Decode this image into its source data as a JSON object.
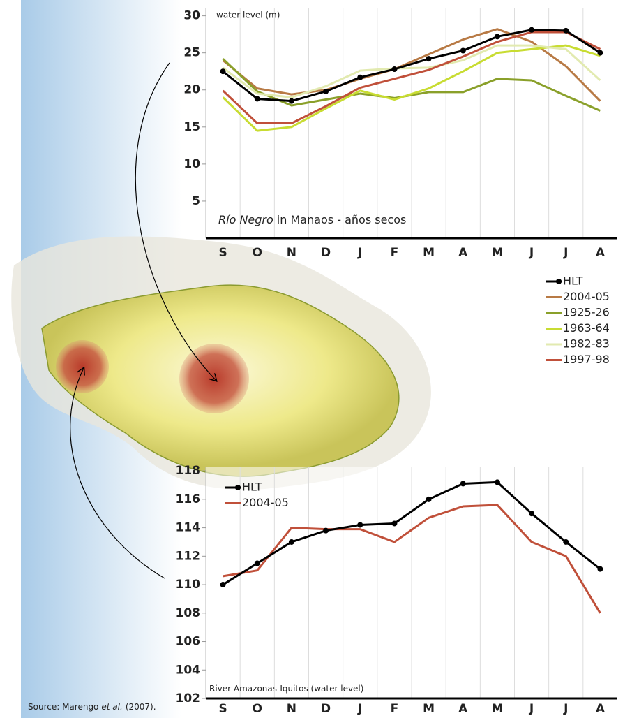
{
  "chart_data": [
    {
      "type": "line",
      "title": [
        "Río Negro",
        "in Manaos - años secos"
      ],
      "y_label": "water level (m)",
      "categories": [
        "S",
        "O",
        "N",
        "D",
        "J",
        "F",
        "M",
        "A",
        "M",
        "J",
        "J",
        "A"
      ],
      "series": [
        {
          "name": "HLT",
          "color": "#000000",
          "markers": true,
          "values": [
            22.5,
            18.8,
            18.5,
            19.8,
            21.7,
            22.8,
            24.2,
            25.3,
            27.2,
            28.1,
            28.0,
            25.0
          ]
        },
        {
          "name": "2004-05",
          "color": "#b87a45",
          "values": [
            24.0,
            20.2,
            19.4,
            20.0,
            21.5,
            22.8,
            24.8,
            26.8,
            28.2,
            26.5,
            23.2,
            18.5
          ]
        },
        {
          "name": "1925-26",
          "color": "#8aa02a",
          "values": [
            24.2,
            19.8,
            17.9,
            18.7,
            19.5,
            18.9,
            19.7,
            19.7,
            21.5,
            21.3,
            19.2,
            17.2
          ]
        },
        {
          "name": "1963-64",
          "color": "#c8dc32",
          "values": [
            19.0,
            14.5,
            15.0,
            17.5,
            19.9,
            18.7,
            20.2,
            22.5,
            25.0,
            25.5,
            26.0,
            24.6
          ]
        },
        {
          "name": "1982-83",
          "color": "#e2eab0",
          "values": [
            23.0,
            19.5,
            19.0,
            20.5,
            22.6,
            22.9,
            23.0,
            24.0,
            26.0,
            26.0,
            25.5,
            21.3
          ]
        },
        {
          "name": "1997-98",
          "color": "#c0503a",
          "values": [
            19.9,
            15.5,
            15.5,
            17.8,
            20.3,
            21.5,
            22.7,
            24.5,
            26.5,
            27.8,
            27.8,
            25.5
          ]
        }
      ],
      "ylim": [
        0,
        31
      ],
      "yticks": [
        5,
        10,
        15,
        20,
        25,
        30
      ],
      "legend": "outside right"
    },
    {
      "type": "line",
      "title": [
        "River Amazonas-Iquitos (water level)"
      ],
      "categories": [
        "S",
        "O",
        "N",
        "D",
        "J",
        "F",
        "M",
        "A",
        "M",
        "J",
        "J",
        "A"
      ],
      "series": [
        {
          "name": "HLT",
          "color": "#000000",
          "markers": true,
          "values": [
            110.0,
            111.5,
            113.0,
            113.8,
            114.2,
            114.3,
            116.0,
            117.1,
            117.2,
            115.0,
            113.0,
            111.1
          ]
        },
        {
          "name": "2004-05",
          "color": "#c0503a",
          "values": [
            110.6,
            111.0,
            114.0,
            113.9,
            113.9,
            113.0,
            114.7,
            115.5,
            115.6,
            113.0,
            112.0,
            108.0
          ]
        }
      ],
      "ylim": [
        102,
        118.3
      ],
      "yticks": [
        102,
        104,
        106,
        108,
        110,
        112,
        114,
        116,
        118
      ],
      "legend": "upper left"
    }
  ],
  "source": [
    "Source: Marengo",
    "et al.",
    "(2007)."
  ]
}
